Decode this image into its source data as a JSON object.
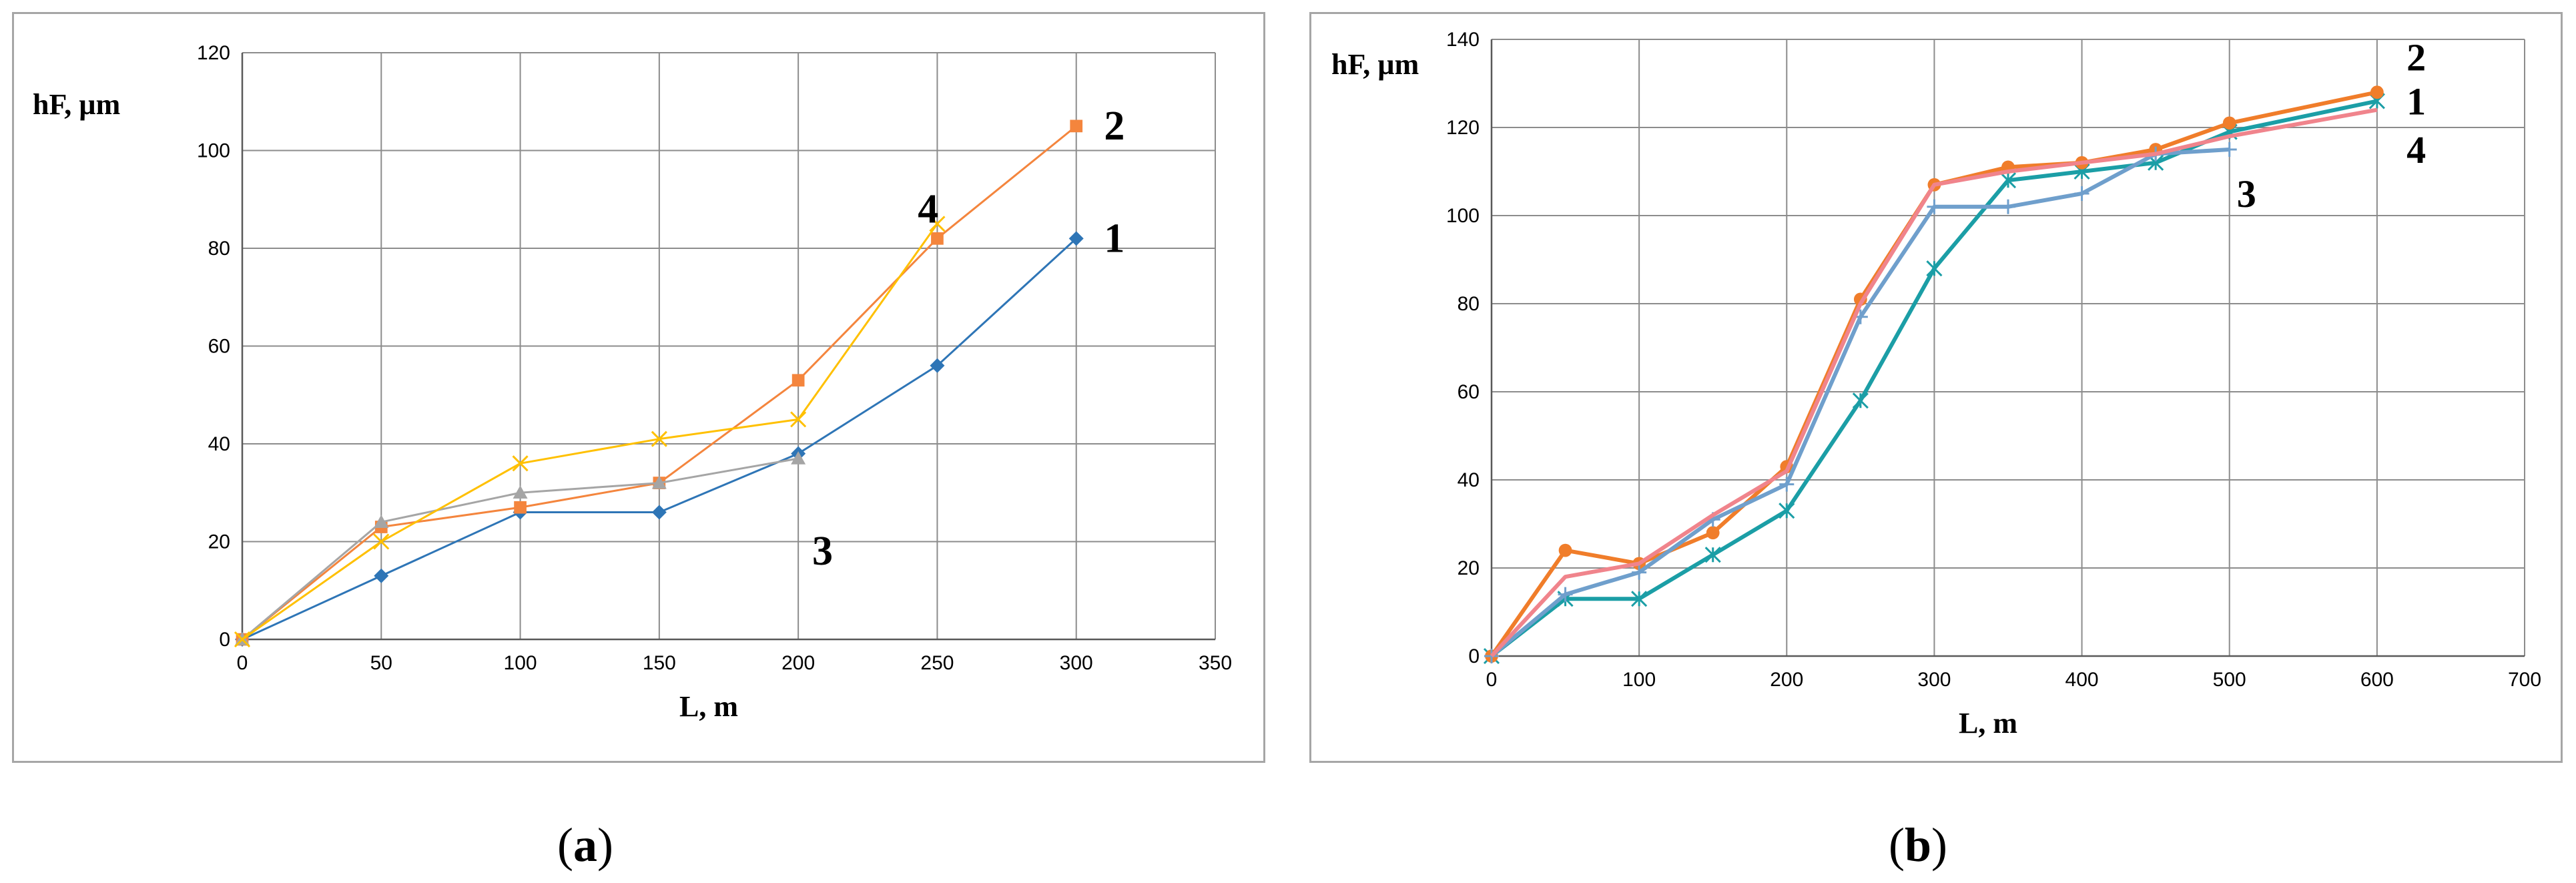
{
  "captions": {
    "a_letter": "a",
    "b_letter": "b"
  },
  "chart_data": [
    {
      "id": "a",
      "type": "line",
      "xlabel": "L, m",
      "ylabel": "hF, µm",
      "xlim": [
        0,
        350
      ],
      "ylim": [
        0,
        120
      ],
      "xticks": [
        0,
        50,
        100,
        150,
        200,
        250,
        300,
        350
      ],
      "yticks": [
        0,
        20,
        40,
        60,
        80,
        100,
        120
      ],
      "grid": true,
      "series": [
        {
          "name": "1",
          "color": "#2e75b6",
          "marker": "diamond",
          "x": [
            0,
            50,
            100,
            150,
            200,
            250,
            300
          ],
          "y": [
            0,
            13,
            26,
            26,
            38,
            56,
            82
          ]
        },
        {
          "name": "2",
          "color": "#f4853d",
          "marker": "square",
          "x": [
            0,
            50,
            100,
            150,
            200,
            250,
            300
          ],
          "y": [
            0,
            23,
            27,
            32,
            53,
            82,
            105
          ]
        },
        {
          "name": "3",
          "color": "#a5a5a5",
          "marker": "triangle",
          "x": [
            0,
            50,
            100,
            150,
            200
          ],
          "y": [
            0,
            24,
            30,
            32,
            37
          ]
        },
        {
          "name": "4",
          "color": "#ffc000",
          "marker": "x",
          "x": [
            0,
            50,
            100,
            150,
            200,
            250
          ],
          "y": [
            0,
            20,
            36,
            41,
            45,
            85
          ]
        }
      ],
      "series_labels": [
        {
          "text": "2",
          "x": 310,
          "y": 105
        },
        {
          "text": "1",
          "x": 310,
          "y": 82
        },
        {
          "text": "4",
          "x": 243,
          "y": 88
        },
        {
          "text": "3",
          "x": 205,
          "y": 18
        }
      ]
    },
    {
      "id": "b",
      "type": "line",
      "xlabel": "L, m",
      "ylabel": "hF, µm",
      "xlim": [
        0,
        700
      ],
      "ylim": [
        0,
        140
      ],
      "xticks": [
        0,
        100,
        200,
        300,
        400,
        500,
        600,
        700
      ],
      "yticks": [
        0,
        20,
        40,
        60,
        80,
        100,
        120,
        140
      ],
      "grid": true,
      "series": [
        {
          "name": "1",
          "color": "#1b9ea6",
          "marker": "star",
          "x": [
            0,
            50,
            100,
            150,
            200,
            250,
            300,
            350,
            400,
            450,
            500,
            600
          ],
          "y": [
            0,
            13,
            13,
            23,
            33,
            58,
            88,
            108,
            110,
            112,
            119,
            126
          ]
        },
        {
          "name": "2",
          "color": "#f07d2a",
          "marker": "circle",
          "x": [
            0,
            50,
            100,
            150,
            200,
            250,
            300,
            350,
            400,
            450,
            500,
            600
          ],
          "y": [
            0,
            24,
            21,
            28,
            43,
            81,
            107,
            111,
            112,
            115,
            121,
            128
          ]
        },
        {
          "name": "3",
          "color": "#6f9fcc",
          "marker": "plus",
          "x": [
            0,
            50,
            100,
            150,
            200,
            250,
            300,
            350,
            400,
            450,
            500
          ],
          "y": [
            0,
            14,
            19,
            31,
            39,
            77,
            102,
            102,
            105,
            114,
            115
          ]
        },
        {
          "name": "4",
          "color": "#f0848c",
          "marker": "none",
          "x": [
            0,
            50,
            100,
            150,
            200,
            250,
            300,
            350,
            400,
            450,
            500,
            600
          ],
          "y": [
            0,
            18,
            21,
            32,
            42,
            80,
            107,
            110,
            112,
            114,
            118,
            124
          ]
        }
      ],
      "series_labels": [
        {
          "text": "2",
          "x": 620,
          "y": 136
        },
        {
          "text": "1",
          "x": 620,
          "y": 126
        },
        {
          "text": "4",
          "x": 620,
          "y": 115
        },
        {
          "text": "3",
          "x": 505,
          "y": 105
        }
      ]
    }
  ]
}
